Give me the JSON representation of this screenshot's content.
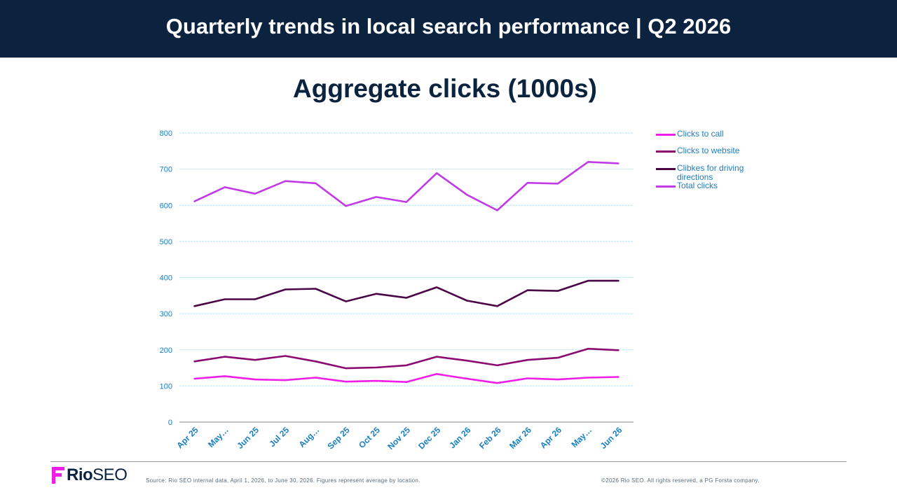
{
  "header": {
    "title": "Quarterly trends in local search performance  |  Q2 2026"
  },
  "chart_data": {
    "type": "line",
    "title": "Aggregate clicks (1000s)",
    "xlabel": "",
    "ylabel": "",
    "ylim": [
      0,
      800
    ],
    "yticks": [
      "0",
      "100",
      "200",
      "300",
      "400",
      "500",
      "600",
      "700",
      "800"
    ],
    "grid": true,
    "legend_position": "right",
    "categories": [
      "Apr 25",
      "May…",
      "Jun 25",
      "Jul 25",
      "Aug…",
      "Sep 25",
      "Oct 25",
      "Nov 25",
      "Dec 25",
      "Jan 26",
      "Feb 26",
      "Mar 26",
      "Apr 26",
      "May…",
      "Jun 26"
    ],
    "series": [
      {
        "name": "Clicks to call",
        "color": "#ee1ee8",
        "values": [
          120,
          127,
          118,
          116,
          123,
          112,
          114,
          111,
          133,
          120,
          108,
          121,
          118,
          123,
          125
        ]
      },
      {
        "name": "Clicks to website",
        "color": "#8b0a70",
        "values": [
          168,
          181,
          172,
          183,
          168,
          149,
          151,
          157,
          181,
          170,
          157,
          172,
          178,
          203,
          199
        ]
      },
      {
        "name": "Clibkes for driving directions",
        "color": "#4b0647",
        "values": [
          321,
          340,
          340,
          367,
          369,
          334,
          355,
          344,
          373,
          336,
          321,
          365,
          363,
          391,
          391
        ]
      },
      {
        "name": "Total clicks",
        "color": "#c23ae6",
        "values": [
          611,
          650,
          632,
          667,
          661,
          598,
          623,
          609,
          689,
          629,
          586,
          662,
          660,
          720,
          716
        ]
      }
    ]
  },
  "footer": {
    "logo_text_bold": "Rio",
    "logo_text": "SEO",
    "source": "Source: Rio SEO internal data, April 1, 2026, to June 30, 2026. Figures represent average by location.",
    "copyright": "©2026 Rio SEO. All rights reserved, a PG Forsta company."
  },
  "colors": {
    "header_bg": "#0c2340",
    "brand_magenta": "#ee1ee8",
    "axis_text": "#1a7fc1",
    "grid": "#bfe3f0"
  }
}
